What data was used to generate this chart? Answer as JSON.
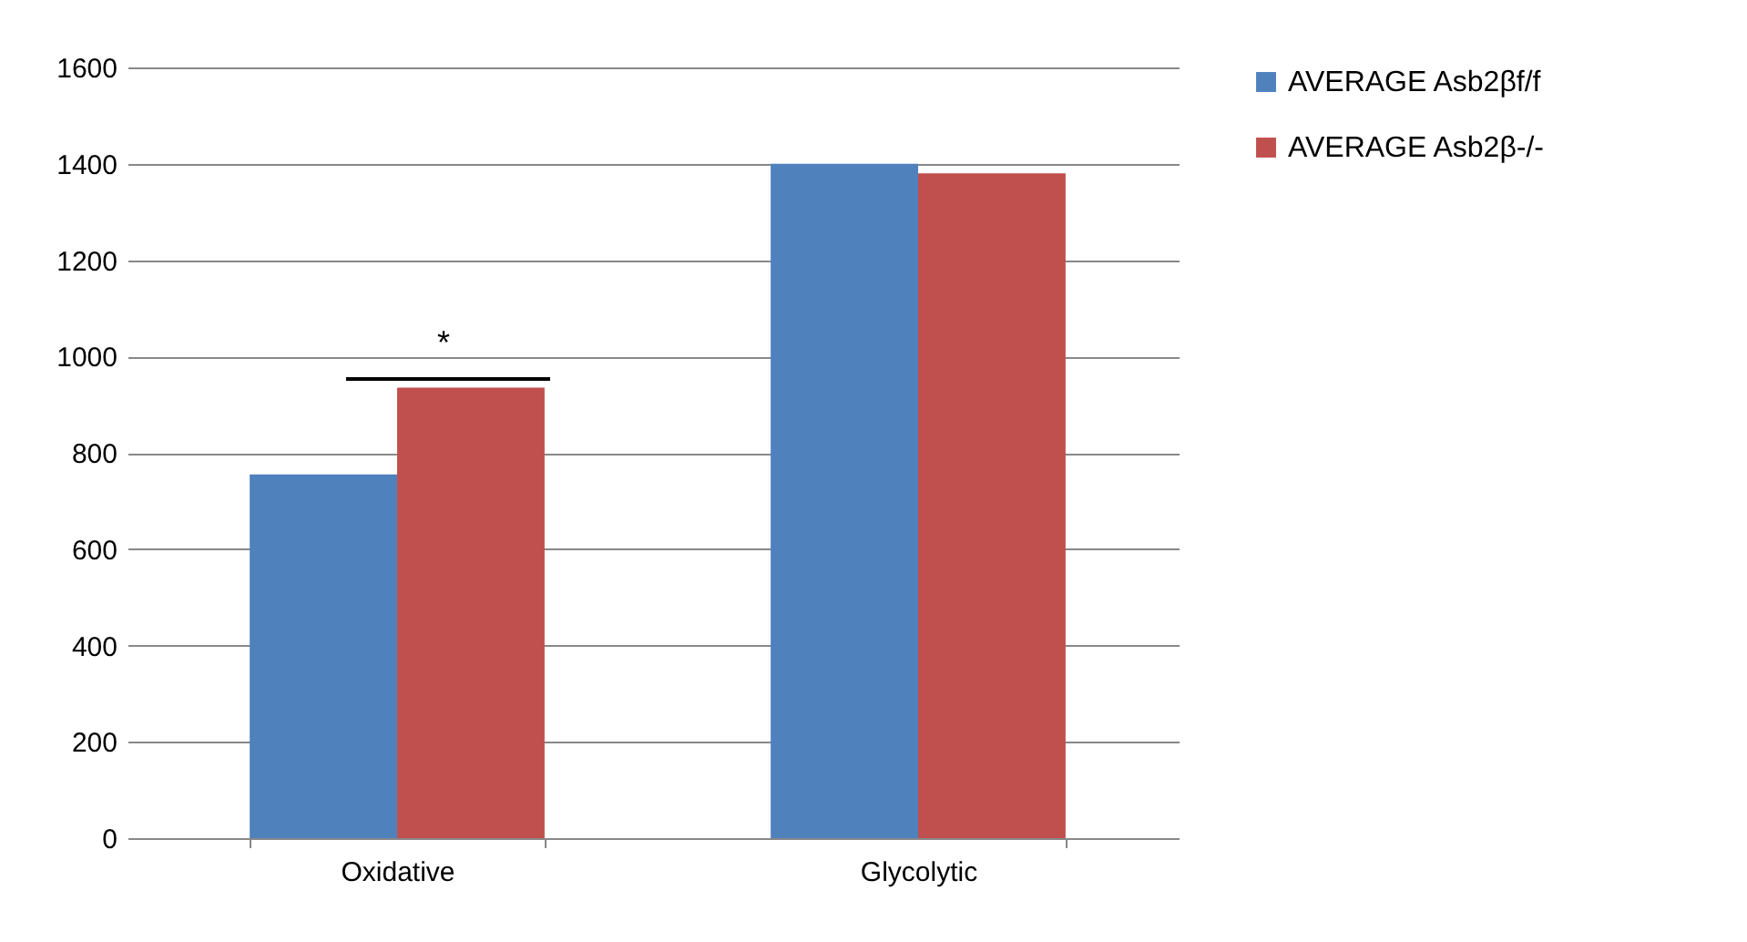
{
  "chart_data": {
    "type": "bar",
    "categories": [
      "Oxidative",
      "Glycolytic"
    ],
    "series": [
      {
        "name": "AVERAGE Asb2βf/f",
        "color": "#4f81bd",
        "values": [
          755,
          1400
        ]
      },
      {
        "name": "AVERAGE Asb2β-/-",
        "color": "#c0504d",
        "values": [
          935,
          1380
        ]
      }
    ],
    "ylim": [
      0,
      1600
    ],
    "yticks": [
      0,
      200,
      400,
      600,
      800,
      1000,
      1200,
      1400,
      1600
    ],
    "grid": "y",
    "legend": "right",
    "annotations": [
      "*"
    ]
  }
}
